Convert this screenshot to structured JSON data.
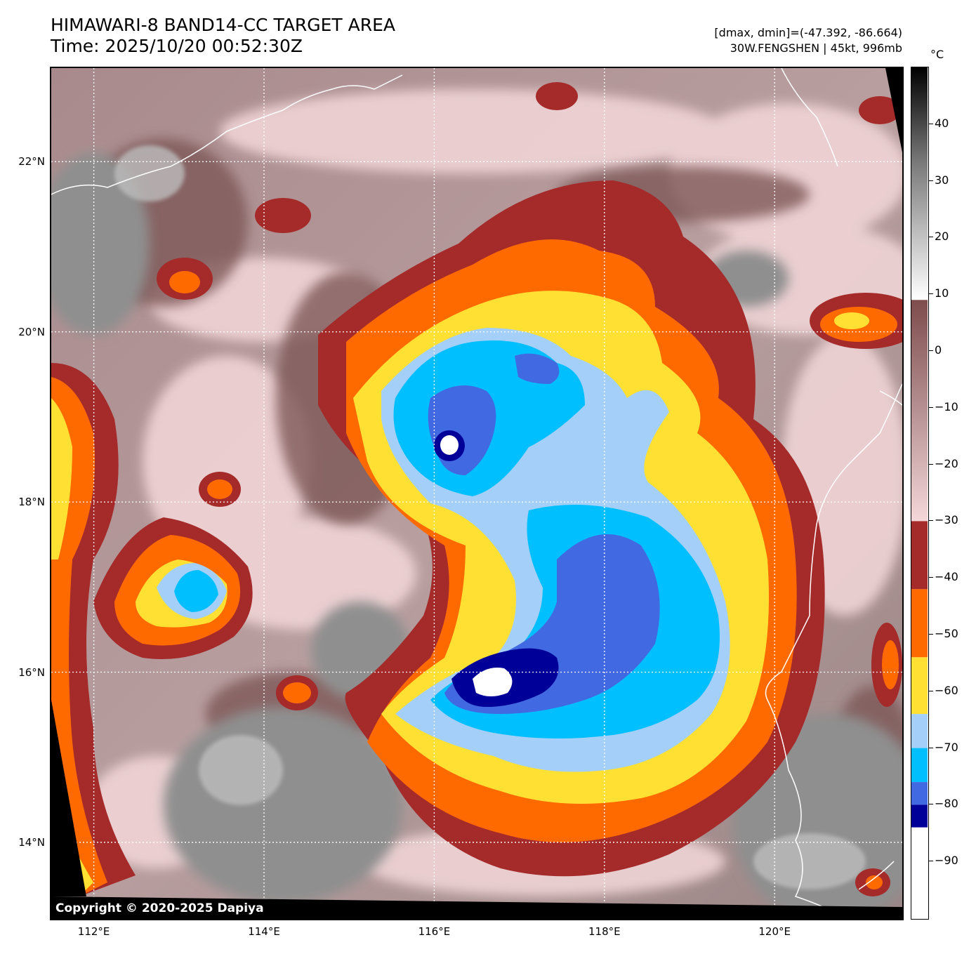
{
  "title": {
    "line1": "HIMAWARI-8 BAND14-CC TARGET AREA",
    "line2": "Time: 2025/10/20 00:52:30Z"
  },
  "info": {
    "range": "[dmax, dmin]=(-47.392, -86.664)",
    "storm": "30W.FENGSHEN | 45kt, 996mb"
  },
  "map": {
    "lat_labels": [
      {
        "label": "22°N",
        "value": 22
      },
      {
        "label": "20°N",
        "value": 20
      },
      {
        "label": "18°N",
        "value": 18
      },
      {
        "label": "16°N",
        "value": 16
      },
      {
        "label": "14°N",
        "value": 14
      }
    ],
    "lon_labels": [
      {
        "label": "112°E",
        "value": 112
      },
      {
        "label": "114°E",
        "value": 114
      },
      {
        "label": "116°E",
        "value": 116
      },
      {
        "label": "118°E",
        "value": 118
      },
      {
        "label": "120°E",
        "value": 120
      }
    ],
    "lon_range": [
      111.5,
      121.5
    ],
    "lat_range": [
      13.1,
      23.1
    ],
    "copyright": "Copyright © 2020-2025 Dapiya"
  },
  "colorbar": {
    "unit": "°C",
    "range": [
      -100,
      50
    ],
    "ticks": [
      {
        "label": "40",
        "value": 40
      },
      {
        "label": "30",
        "value": 30
      },
      {
        "label": "20",
        "value": 20
      },
      {
        "label": "10",
        "value": 10
      },
      {
        "label": "0",
        "value": 0
      },
      {
        "label": "−10",
        "value": -10
      },
      {
        "label": "−20",
        "value": -20
      },
      {
        "label": "−30",
        "value": -30
      },
      {
        "label": "−40",
        "value": -40
      },
      {
        "label": "−50",
        "value": -50
      },
      {
        "label": "−60",
        "value": -60
      },
      {
        "label": "−70",
        "value": -70
      },
      {
        "label": "−80",
        "value": -80
      },
      {
        "label": "−90",
        "value": -90
      }
    ],
    "colors": {
      "below_minus_84": "#ffffff",
      "minus_84_to_80": "#000099",
      "minus_80_to_76": "#4169e1",
      "minus_76_to_70": "#00bfff",
      "minus_70_to_64": "#a3cff8",
      "minus_64_to_54": "#ffe033",
      "minus_54_to_42": "#ff6a00",
      "minus_42_to_30": "#a52a2a",
      "cloud_cold": "#f5d7d9",
      "cloud_warm": "#7e4c4c",
      "clear_land": "#9a9a9a",
      "coast": "#ffffff",
      "grid": "#ffffff"
    }
  }
}
